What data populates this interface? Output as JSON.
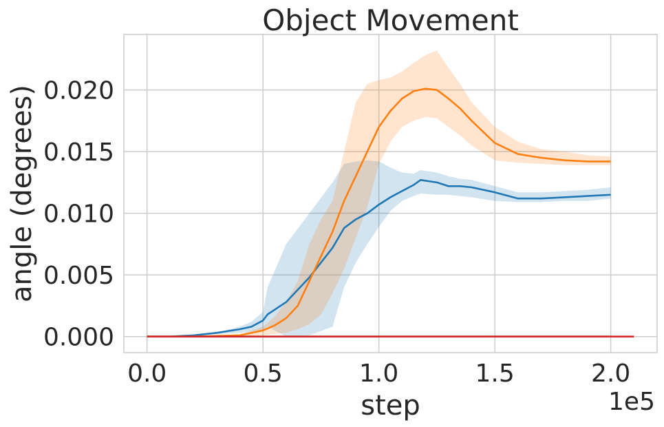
{
  "chart_data": {
    "type": "line",
    "title": "Object Movement",
    "xlabel": "step",
    "ylabel": "angle (degrees)",
    "x_offset_label": "1e5",
    "xlim": [
      -0.1,
      2.2
    ],
    "ylim": [
      -0.0013,
      0.0245
    ],
    "xticks": [
      0.0,
      0.5,
      1.0,
      1.5,
      2.0
    ],
    "xtick_labels": [
      "0.0",
      "0.5",
      "1.0",
      "1.5",
      "2.0"
    ],
    "yticks": [
      0.0,
      0.005,
      0.01,
      0.015,
      0.02
    ],
    "ytick_labels": [
      "0.000",
      "0.005",
      "0.010",
      "0.015",
      "0.020"
    ],
    "grid": true,
    "series": [
      {
        "color": "#1f77b4",
        "x": [
          0,
          0.1,
          0.2,
          0.3,
          0.4,
          0.45,
          0.5,
          0.52,
          0.6,
          0.7,
          0.8,
          0.85,
          0.9,
          0.95,
          1.0,
          1.05,
          1.1,
          1.15,
          1.18,
          1.25,
          1.3,
          1.35,
          1.4,
          1.5,
          1.6,
          1.7,
          1.8,
          1.9,
          2.0
        ],
        "y": [
          0.0,
          0.0,
          0.0001,
          0.0003,
          0.0006,
          0.0008,
          0.0013,
          0.0018,
          0.0028,
          0.0048,
          0.0072,
          0.0088,
          0.0095,
          0.01,
          0.0107,
          0.0113,
          0.0118,
          0.0123,
          0.0127,
          0.0125,
          0.0122,
          0.0122,
          0.0121,
          0.0117,
          0.0112,
          0.0112,
          0.0113,
          0.0114,
          0.0115
        ],
        "lower": [
          0.0,
          0.0,
          0.0001,
          0.0002,
          0.0003,
          0.0004,
          0.0005,
          0.0008,
          0.0,
          0.0001,
          0.0008,
          0.004,
          0.006,
          0.0075,
          0.0089,
          0.0102,
          0.011,
          0.0114,
          0.0116,
          0.0115,
          0.0115,
          0.0114,
          0.0113,
          0.011,
          0.0109,
          0.0109,
          0.011,
          0.011,
          0.0112
        ],
        "upper": [
          0.0,
          0.0,
          0.0001,
          0.0003,
          0.0008,
          0.0012,
          0.002,
          0.004,
          0.0075,
          0.01,
          0.0125,
          0.014,
          0.0142,
          0.0143,
          0.0142,
          0.0137,
          0.0133,
          0.0132,
          0.0135,
          0.0133,
          0.013,
          0.0128,
          0.0127,
          0.0122,
          0.0117,
          0.0117,
          0.0118,
          0.0119,
          0.0121
        ]
      },
      {
        "color": "#ff7f0e",
        "x": [
          0,
          0.2,
          0.4,
          0.5,
          0.55,
          0.6,
          0.65,
          0.7,
          0.75,
          0.8,
          0.85,
          0.9,
          0.95,
          1.0,
          1.05,
          1.1,
          1.15,
          1.2,
          1.25,
          1.3,
          1.35,
          1.4,
          1.5,
          1.6,
          1.7,
          1.8,
          1.9,
          2.0
        ],
        "y": [
          0.0,
          0.0,
          0.0001,
          0.0005,
          0.0009,
          0.0015,
          0.0025,
          0.0045,
          0.0065,
          0.0085,
          0.011,
          0.013,
          0.015,
          0.017,
          0.0183,
          0.0193,
          0.0199,
          0.0201,
          0.02,
          0.0193,
          0.0185,
          0.0175,
          0.0157,
          0.0148,
          0.0145,
          0.0143,
          0.0142,
          0.0142
        ],
        "lower": [
          0.0,
          0.0,
          0.0,
          0.0001,
          0.0002,
          0.0003,
          0.0006,
          0.001,
          0.0018,
          0.0035,
          0.0055,
          0.008,
          0.0105,
          0.014,
          0.0158,
          0.017,
          0.0175,
          0.0178,
          0.0177,
          0.017,
          0.0163,
          0.0155,
          0.0143,
          0.0141,
          0.014,
          0.0139,
          0.0139,
          0.0139
        ],
        "upper": [
          0.0,
          0.0,
          0.0002,
          0.0008,
          0.0016,
          0.0028,
          0.0045,
          0.0075,
          0.0095,
          0.011,
          0.015,
          0.019,
          0.0205,
          0.0208,
          0.021,
          0.0215,
          0.0222,
          0.0228,
          0.0232,
          0.0218,
          0.0205,
          0.019,
          0.017,
          0.0158,
          0.0152,
          0.015,
          0.0147,
          0.0146
        ]
      },
      {
        "color": "#2ca02c",
        "x": [
          0,
          0.5,
          1.0,
          1.5,
          2.0
        ],
        "y": [
          0.0,
          0.0,
          0.0,
          0.0,
          0.0
        ]
      },
      {
        "color": "#d62728",
        "x": [
          0,
          0.5,
          1.0,
          1.5,
          2.0,
          2.1
        ],
        "y": [
          0.0,
          0.0,
          0.0,
          0.0,
          0.0,
          0.0
        ]
      }
    ]
  }
}
